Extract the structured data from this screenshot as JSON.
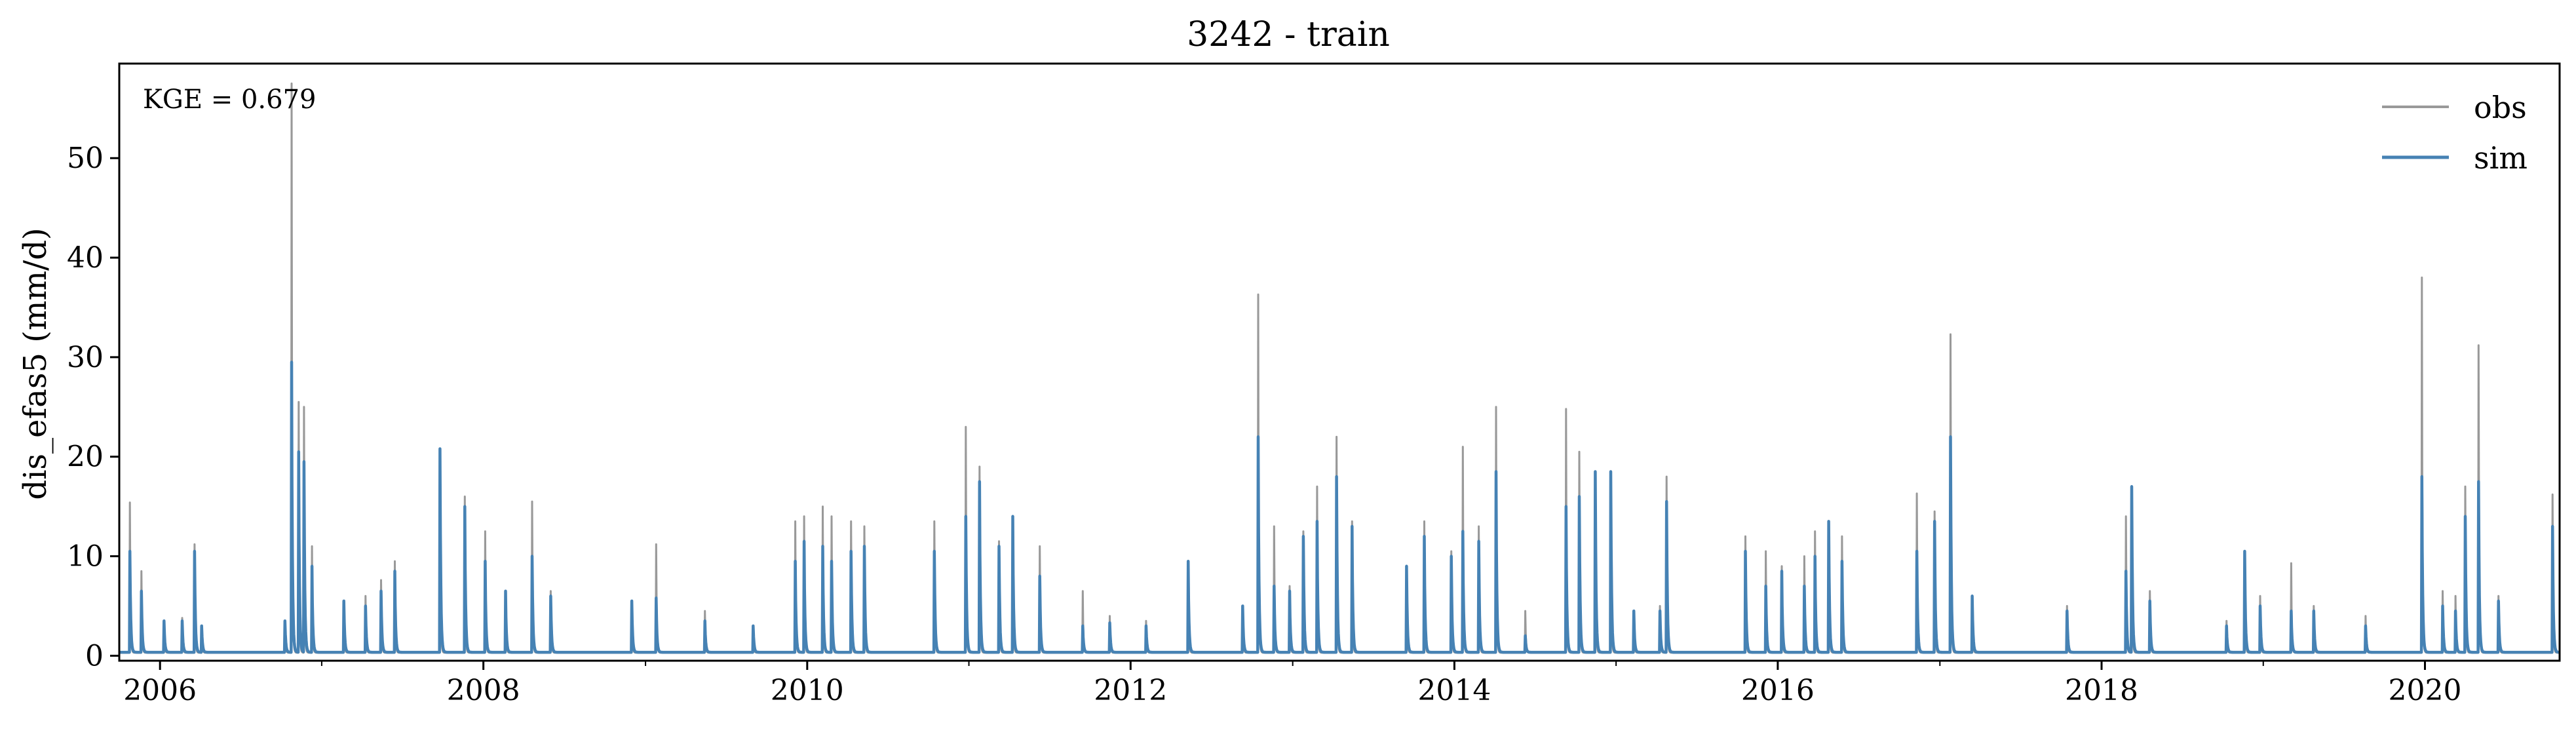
{
  "chart_data": {
    "type": "line",
    "title": "3242 - train",
    "ylabel": "dis_efas5 (mm/d)",
    "xlabel": "",
    "annotation": "KGE = 0.679",
    "xlim": [
      "2005-10-01",
      "2020-10-31"
    ],
    "ylim": [
      -0.5,
      59.5
    ],
    "x_ticks": [
      "2006",
      "2008",
      "2010",
      "2012",
      "2014",
      "2016",
      "2018",
      "2020"
    ],
    "y_ticks": [
      "0",
      "10",
      "20",
      "30",
      "40",
      "50"
    ],
    "legend": {
      "location": "top-right",
      "entries": [
        "obs",
        "sim"
      ]
    },
    "grid": false,
    "series": [
      {
        "name": "obs",
        "color": "#999999",
        "baseline": 0.3,
        "peaks": [
          [
            "2005-10-25",
            15.4
          ],
          [
            "2005-11-20",
            8.5
          ],
          [
            "2006-01-10",
            3.5
          ],
          [
            "2006-02-20",
            3.8
          ],
          [
            "2006-03-20",
            11.2
          ],
          [
            "2006-04-05",
            3.0
          ],
          [
            "2006-10-10",
            3.2
          ],
          [
            "2006-10-25",
            57.5
          ],
          [
            "2006-11-10",
            25.5
          ],
          [
            "2006-11-22",
            25.0
          ],
          [
            "2006-12-10",
            11.0
          ],
          [
            "2007-02-20",
            5.5
          ],
          [
            "2007-04-10",
            6.0
          ],
          [
            "2007-05-15",
            7.6
          ],
          [
            "2007-06-15",
            9.5
          ],
          [
            "2007-09-25",
            20.5
          ],
          [
            "2007-11-20",
            16.0
          ],
          [
            "2008-01-05",
            12.5
          ],
          [
            "2008-02-20",
            6.5
          ],
          [
            "2008-04-20",
            15.5
          ],
          [
            "2008-06-01",
            6.5
          ],
          [
            "2008-12-01",
            5.5
          ],
          [
            "2009-01-25",
            11.2
          ],
          [
            "2009-05-15",
            4.5
          ],
          [
            "2009-09-01",
            3.0
          ],
          [
            "2009-12-05",
            13.5
          ],
          [
            "2009-12-25",
            14.0
          ],
          [
            "2010-02-05",
            15.0
          ],
          [
            "2010-02-25",
            14.0
          ],
          [
            "2010-04-10",
            13.5
          ],
          [
            "2010-05-10",
            13.0
          ],
          [
            "2010-10-15",
            13.5
          ],
          [
            "2010-12-25",
            23.0
          ],
          [
            "2011-01-25",
            19.0
          ],
          [
            "2011-03-10",
            11.5
          ],
          [
            "2011-04-10",
            13.0
          ],
          [
            "2011-06-10",
            11.0
          ],
          [
            "2011-09-15",
            6.5
          ],
          [
            "2011-11-15",
            4.0
          ],
          [
            "2012-02-05",
            3.5
          ],
          [
            "2012-05-10",
            9.5
          ],
          [
            "2012-09-10",
            5.0
          ],
          [
            "2012-10-15",
            36.3
          ],
          [
            "2012-11-20",
            13.0
          ],
          [
            "2012-12-25",
            7.0
          ],
          [
            "2013-01-25",
            12.5
          ],
          [
            "2013-02-25",
            17.0
          ],
          [
            "2013-04-10",
            22.0
          ],
          [
            "2013-05-15",
            13.5
          ],
          [
            "2013-09-15",
            9.0
          ],
          [
            "2013-10-25",
            13.5
          ],
          [
            "2013-12-25",
            10.5
          ],
          [
            "2014-01-20",
            21.0
          ],
          [
            "2014-02-25",
            13.0
          ],
          [
            "2014-04-05",
            25.0
          ],
          [
            "2014-06-10",
            4.5
          ],
          [
            "2014-09-10",
            24.8
          ],
          [
            "2014-10-10",
            20.5
          ],
          [
            "2014-11-15",
            18.0
          ],
          [
            "2014-12-20",
            18.5
          ],
          [
            "2015-02-10",
            4.5
          ],
          [
            "2015-04-10",
            5.0
          ],
          [
            "2015-04-25",
            18.0
          ],
          [
            "2015-10-20",
            12.0
          ],
          [
            "2015-12-05",
            10.5
          ],
          [
            "2016-01-10",
            9.0
          ],
          [
            "2016-03-01",
            10.0
          ],
          [
            "2016-03-25",
            12.5
          ],
          [
            "2016-04-25",
            13.5
          ],
          [
            "2016-05-25",
            12.0
          ],
          [
            "2016-11-10",
            16.3
          ],
          [
            "2016-12-20",
            14.5
          ],
          [
            "2017-01-25",
            32.3
          ],
          [
            "2017-03-15",
            6.0
          ],
          [
            "2017-10-15",
            5.0
          ],
          [
            "2018-02-25",
            14.0
          ],
          [
            "2018-03-10",
            16.5
          ],
          [
            "2018-04-20",
            6.5
          ],
          [
            "2018-10-10",
            3.5
          ],
          [
            "2018-11-20",
            10.5
          ],
          [
            "2018-12-25",
            6.0
          ],
          [
            "2019-03-05",
            9.3
          ],
          [
            "2019-04-25",
            5.0
          ],
          [
            "2019-08-20",
            4.0
          ],
          [
            "2019-12-25",
            38.0
          ],
          [
            "2020-02-10",
            6.5
          ],
          [
            "2020-03-10",
            6.0
          ],
          [
            "2020-04-01",
            17.0
          ],
          [
            "2020-05-01",
            31.2
          ],
          [
            "2020-06-15",
            6.0
          ],
          [
            "2020-10-15",
            16.2
          ]
        ]
      },
      {
        "name": "sim",
        "color": "#4682B4",
        "baseline": 0.35,
        "peaks": [
          [
            "2005-10-25",
            10.5
          ],
          [
            "2005-11-20",
            6.5
          ],
          [
            "2006-01-10",
            3.5
          ],
          [
            "2006-02-20",
            3.5
          ],
          [
            "2006-03-20",
            10.5
          ],
          [
            "2006-04-05",
            3.0
          ],
          [
            "2006-10-10",
            3.5
          ],
          [
            "2006-10-25",
            29.5
          ],
          [
            "2006-11-10",
            20.5
          ],
          [
            "2006-11-22",
            19.5
          ],
          [
            "2006-12-10",
            9.0
          ],
          [
            "2007-02-20",
            5.5
          ],
          [
            "2007-04-10",
            5.0
          ],
          [
            "2007-05-15",
            6.5
          ],
          [
            "2007-06-15",
            8.5
          ],
          [
            "2007-09-25",
            20.8
          ],
          [
            "2007-11-20",
            15.0
          ],
          [
            "2008-01-05",
            9.5
          ],
          [
            "2008-02-20",
            6.5
          ],
          [
            "2008-04-20",
            10.0
          ],
          [
            "2008-06-01",
            6.0
          ],
          [
            "2008-12-01",
            5.5
          ],
          [
            "2009-01-25",
            5.8
          ],
          [
            "2009-05-15",
            3.5
          ],
          [
            "2009-09-01",
            3.0
          ],
          [
            "2009-12-05",
            9.5
          ],
          [
            "2009-12-25",
            11.5
          ],
          [
            "2010-02-05",
            11.0
          ],
          [
            "2010-02-25",
            9.5
          ],
          [
            "2010-04-10",
            10.5
          ],
          [
            "2010-05-10",
            11.0
          ],
          [
            "2010-10-15",
            10.5
          ],
          [
            "2010-12-25",
            14.0
          ],
          [
            "2011-01-25",
            17.5
          ],
          [
            "2011-03-10",
            11.0
          ],
          [
            "2011-04-10",
            14.0
          ],
          [
            "2011-06-10",
            8.0
          ],
          [
            "2011-09-15",
            3.0
          ],
          [
            "2011-11-15",
            3.3
          ],
          [
            "2012-02-05",
            3.0
          ],
          [
            "2012-05-10",
            9.5
          ],
          [
            "2012-09-10",
            5.0
          ],
          [
            "2012-10-15",
            22.0
          ],
          [
            "2012-11-20",
            7.0
          ],
          [
            "2012-12-25",
            6.5
          ],
          [
            "2013-01-25",
            12.0
          ],
          [
            "2013-02-25",
            13.5
          ],
          [
            "2013-04-10",
            18.0
          ],
          [
            "2013-05-15",
            13.0
          ],
          [
            "2013-09-15",
            9.0
          ],
          [
            "2013-10-25",
            12.0
          ],
          [
            "2013-12-25",
            10.0
          ],
          [
            "2014-01-20",
            12.5
          ],
          [
            "2014-02-25",
            11.5
          ],
          [
            "2014-04-05",
            18.5
          ],
          [
            "2014-06-10",
            2.0
          ],
          [
            "2014-09-10",
            15.0
          ],
          [
            "2014-10-10",
            16.0
          ],
          [
            "2014-11-15",
            18.5
          ],
          [
            "2014-12-20",
            18.5
          ],
          [
            "2015-02-10",
            4.5
          ],
          [
            "2015-04-10",
            4.5
          ],
          [
            "2015-04-25",
            15.5
          ],
          [
            "2015-10-20",
            10.5
          ],
          [
            "2015-12-05",
            7.0
          ],
          [
            "2016-01-10",
            8.5
          ],
          [
            "2016-03-01",
            7.0
          ],
          [
            "2016-03-25",
            10.0
          ],
          [
            "2016-04-25",
            13.5
          ],
          [
            "2016-05-25",
            9.5
          ],
          [
            "2016-11-10",
            10.5
          ],
          [
            "2016-12-20",
            13.5
          ],
          [
            "2017-01-25",
            22.0
          ],
          [
            "2017-03-15",
            6.0
          ],
          [
            "2017-10-15",
            4.5
          ],
          [
            "2018-02-25",
            8.5
          ],
          [
            "2018-03-10",
            17.0
          ],
          [
            "2018-04-20",
            5.5
          ],
          [
            "2018-10-10",
            3.0
          ],
          [
            "2018-11-20",
            10.5
          ],
          [
            "2018-12-25",
            5.0
          ],
          [
            "2019-03-05",
            4.5
          ],
          [
            "2019-04-25",
            4.5
          ],
          [
            "2019-08-20",
            3.0
          ],
          [
            "2019-12-25",
            18.0
          ],
          [
            "2020-02-10",
            5.0
          ],
          [
            "2020-03-10",
            4.5
          ],
          [
            "2020-04-01",
            14.0
          ],
          [
            "2020-05-01",
            17.5
          ],
          [
            "2020-06-15",
            5.5
          ],
          [
            "2020-10-15",
            13.0
          ]
        ]
      }
    ]
  }
}
